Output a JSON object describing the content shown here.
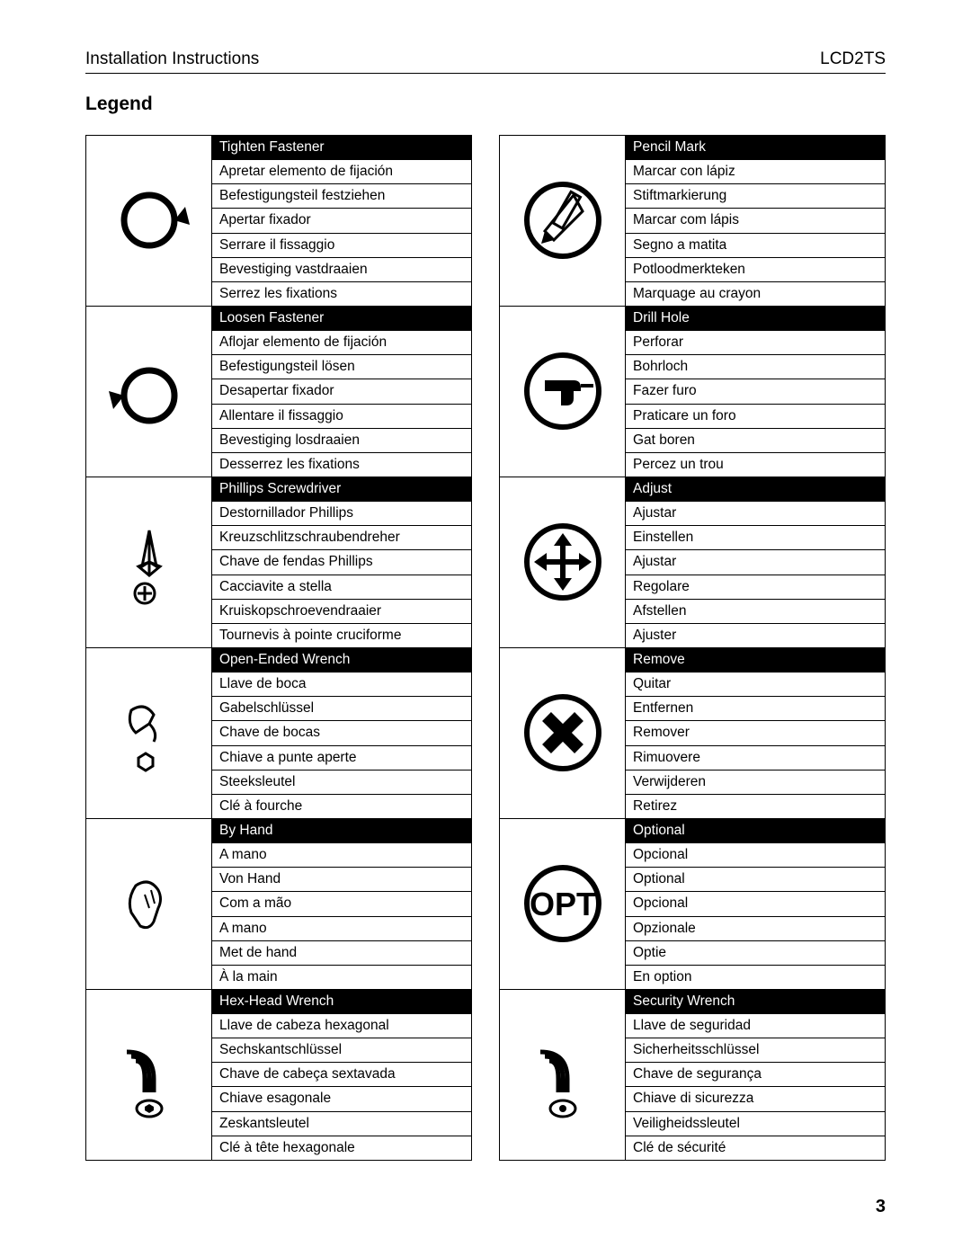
{
  "header": {
    "left": "Installation Instructions",
    "right": "LCD2TS"
  },
  "title": "Legend",
  "page_number": "3",
  "columns": [
    [
      {
        "icon": "tighten",
        "rows": [
          "Tighten Fastener",
          "Apretar elemento de fijación",
          "Befestigungsteil festziehen",
          "Apertar fixador",
          "Serrare il fissaggio",
          "Bevestiging vastdraaien",
          "Serrez les fixations"
        ]
      },
      {
        "icon": "loosen",
        "rows": [
          "Loosen Fastener",
          "Aflojar elemento de fijación",
          "Befestigungsteil lösen",
          "Desapertar fixador",
          "Allentare il fissaggio",
          "Bevestiging losdraaien",
          "Desserrez les fixations"
        ]
      },
      {
        "icon": "phillips",
        "rows": [
          "Phillips Screwdriver",
          "Destornillador Phillips",
          "Kreuzschlitzschraubendreher",
          "Chave de fendas Phillips",
          "Cacciavite a stella",
          "Kruiskopschroevendraaier",
          "Tournevis à pointe cruciforme"
        ]
      },
      {
        "icon": "wrench",
        "rows": [
          "Open-Ended Wrench",
          "Llave de boca",
          "Gabelschlüssel",
          "Chave de bocas",
          "Chiave a punte aperte",
          "Steeksleutel",
          "Clé à fourche"
        ]
      },
      {
        "icon": "hand",
        "rows": [
          "By Hand",
          "A mano",
          "Von Hand",
          "Com a mão",
          "A mano",
          "Met de hand",
          "À la main"
        ]
      },
      {
        "icon": "hexwrench",
        "rows": [
          "Hex-Head Wrench",
          "Llave de cabeza hexagonal",
          "Sechskantschlüssel",
          "Chave de cabeça sextavada",
          "Chiave esagonale",
          "Zeskantsleutel",
          "Clé à tête hexagonale"
        ]
      }
    ],
    [
      {
        "icon": "pencil",
        "rows": [
          "Pencil Mark",
          "Marcar con lápiz",
          "Stiftmarkierung",
          "Marcar com lápis",
          "Segno a matita",
          "Potloodmerkteken",
          "Marquage au crayon"
        ]
      },
      {
        "icon": "drill",
        "rows": [
          "Drill Hole",
          "Perforar",
          "Bohrloch",
          "Fazer furo",
          "Praticare un foro",
          "Gat boren",
          "Percez un trou"
        ]
      },
      {
        "icon": "adjust",
        "rows": [
          "Adjust",
          "Ajustar",
          "Einstellen",
          "Ajustar",
          "Regolare",
          "Afstellen",
          "Ajuster"
        ]
      },
      {
        "icon": "remove",
        "rows": [
          "Remove",
          "Quitar",
          "Entfernen",
          "Remover",
          "Rimuovere",
          "Verwijderen",
          "Retirez"
        ]
      },
      {
        "icon": "optional",
        "rows": [
          "Optional",
          "Opcional",
          "Optional",
          "Opcional",
          "Opzionale",
          "Optie",
          "En option"
        ]
      },
      {
        "icon": "security",
        "rows": [
          "Security Wrench",
          "Llave de seguridad",
          "Sicherheitsschlüssel",
          "Chave de segurança",
          "Chiave di sicurezza",
          "Veiligheidssleutel",
          "Clé de sécurité"
        ]
      }
    ]
  ]
}
